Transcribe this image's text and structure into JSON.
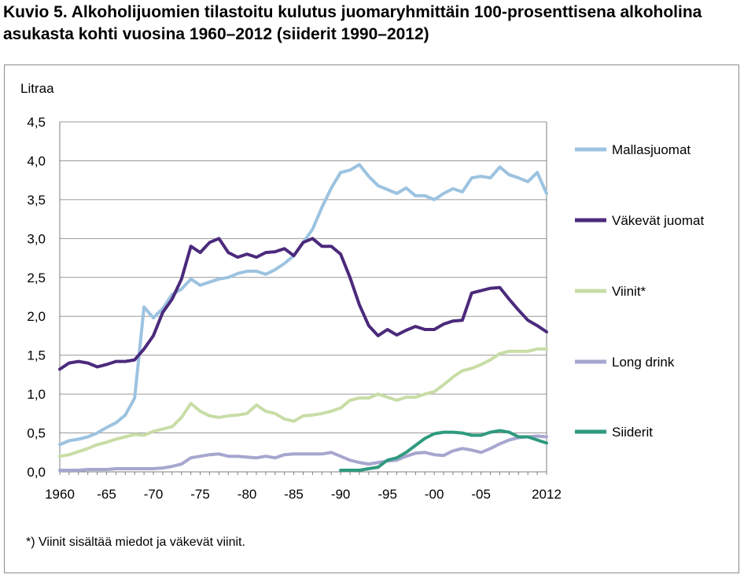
{
  "title_line1": "Kuvio 5. Alkoholijuomien tilastoitu kulutus juomaryhmittäin 100-prosenttisena alkoholina",
  "title_line2": "asukasta kohti vuosina 1960–2012 (siiderit 1990–2012)",
  "footnote": "*) Viinit sisältää miedot ja väkevät viinit.",
  "chart_data": {
    "type": "line",
    "ylabel": "Litraa",
    "ylim": [
      0,
      4.5
    ],
    "yticks": [
      "0,0",
      "0,5",
      "1,0",
      "1,5",
      "2,0",
      "2,5",
      "3,0",
      "3,5",
      "4,0",
      "4,5"
    ],
    "xlim": [
      1960,
      2012
    ],
    "xticks": [
      {
        "value": 1960,
        "label": "1960"
      },
      {
        "value": 1965,
        "label": "-65"
      },
      {
        "value": 1970,
        "label": "-70"
      },
      {
        "value": 1975,
        "label": "-75"
      },
      {
        "value": 1980,
        "label": "-80"
      },
      {
        "value": 1985,
        "label": "-85"
      },
      {
        "value": 1990,
        "label": "-90"
      },
      {
        "value": 1995,
        "label": "-95"
      },
      {
        "value": 2000,
        "label": "-00"
      },
      {
        "value": 2005,
        "label": "-05"
      },
      {
        "value": 2012,
        "label": "2012"
      }
    ],
    "grid": "horizontal",
    "legend": "right",
    "series": [
      {
        "name": "Mallasjuomat",
        "color": "#9cc3e0",
        "x": [
          1960,
          1961,
          1962,
          1963,
          1964,
          1965,
          1966,
          1967,
          1968,
          1969,
          1970,
          1971,
          1972,
          1973,
          1974,
          1975,
          1976,
          1977,
          1978,
          1979,
          1980,
          1981,
          1982,
          1983,
          1984,
          1985,
          1986,
          1987,
          1988,
          1989,
          1990,
          1991,
          1992,
          1993,
          1994,
          1995,
          1996,
          1997,
          1998,
          1999,
          2000,
          2001,
          2002,
          2003,
          2004,
          2005,
          2006,
          2007,
          2008,
          2009,
          2010,
          2011,
          2012
        ],
        "values": [
          0.35,
          0.4,
          0.42,
          0.45,
          0.5,
          0.57,
          0.63,
          0.73,
          0.95,
          2.12,
          1.98,
          2.1,
          2.28,
          2.35,
          2.48,
          2.4,
          2.44,
          2.48,
          2.5,
          2.55,
          2.58,
          2.58,
          2.54,
          2.6,
          2.68,
          2.78,
          2.95,
          3.12,
          3.4,
          3.65,
          3.85,
          3.88,
          3.95,
          3.8,
          3.68,
          3.63,
          3.58,
          3.65,
          3.55,
          3.55,
          3.5,
          3.58,
          3.64,
          3.6,
          3.78,
          3.8,
          3.78,
          3.92,
          3.82,
          3.78,
          3.73,
          3.85,
          3.58
        ]
      },
      {
        "name": "Väkevät juomat",
        "color": "#4b2a7c",
        "x": [
          1960,
          1961,
          1962,
          1963,
          1964,
          1965,
          1966,
          1967,
          1968,
          1969,
          1970,
          1971,
          1972,
          1973,
          1974,
          1975,
          1976,
          1977,
          1978,
          1979,
          1980,
          1981,
          1982,
          1983,
          1984,
          1985,
          1986,
          1987,
          1988,
          1989,
          1990,
          1991,
          1992,
          1993,
          1994,
          1995,
          1996,
          1997,
          1998,
          1999,
          2000,
          2001,
          2002,
          2003,
          2004,
          2005,
          2006,
          2007,
          2008,
          2009,
          2010,
          2011,
          2012
        ],
        "values": [
          1.32,
          1.4,
          1.42,
          1.4,
          1.35,
          1.38,
          1.42,
          1.42,
          1.44,
          1.58,
          1.75,
          2.05,
          2.22,
          2.48,
          2.9,
          2.82,
          2.95,
          3.0,
          2.82,
          2.76,
          2.8,
          2.76,
          2.82,
          2.83,
          2.87,
          2.78,
          2.95,
          3.0,
          2.9,
          2.9,
          2.8,
          2.5,
          2.15,
          1.88,
          1.75,
          1.83,
          1.76,
          1.82,
          1.87,
          1.83,
          1.83,
          1.9,
          1.94,
          1.95,
          2.3,
          2.33,
          2.36,
          2.37,
          2.22,
          2.08,
          1.95,
          1.88,
          1.8
        ]
      },
      {
        "name": "Viinit*",
        "color": "#c8dda6",
        "x": [
          1960,
          1961,
          1962,
          1963,
          1964,
          1965,
          1966,
          1967,
          1968,
          1969,
          1970,
          1971,
          1972,
          1973,
          1974,
          1975,
          1976,
          1977,
          1978,
          1979,
          1980,
          1981,
          1982,
          1983,
          1984,
          1985,
          1986,
          1987,
          1988,
          1989,
          1990,
          1991,
          1992,
          1993,
          1994,
          1995,
          1996,
          1997,
          1998,
          1999,
          2000,
          2001,
          2002,
          2003,
          2004,
          2005,
          2006,
          2007,
          2008,
          2009,
          2010,
          2011,
          2012
        ],
        "values": [
          0.2,
          0.22,
          0.26,
          0.3,
          0.35,
          0.38,
          0.42,
          0.45,
          0.48,
          0.47,
          0.52,
          0.55,
          0.58,
          0.7,
          0.88,
          0.78,
          0.72,
          0.7,
          0.72,
          0.73,
          0.75,
          0.86,
          0.78,
          0.75,
          0.68,
          0.65,
          0.72,
          0.73,
          0.75,
          0.78,
          0.82,
          0.92,
          0.95,
          0.95,
          1.0,
          0.96,
          0.92,
          0.96,
          0.96,
          1.0,
          1.03,
          1.12,
          1.22,
          1.3,
          1.33,
          1.38,
          1.44,
          1.52,
          1.55,
          1.55,
          1.55,
          1.58,
          1.58
        ]
      },
      {
        "name": "Long drink",
        "color": "#a6a6cf",
        "x": [
          1960,
          1961,
          1962,
          1963,
          1964,
          1965,
          1966,
          1967,
          1968,
          1969,
          1970,
          1971,
          1972,
          1973,
          1974,
          1975,
          1976,
          1977,
          1978,
          1979,
          1980,
          1981,
          1982,
          1983,
          1984,
          1985,
          1986,
          1987,
          1988,
          1989,
          1990,
          1991,
          1992,
          1993,
          1994,
          1995,
          1996,
          1997,
          1998,
          1999,
          2000,
          2001,
          2002,
          2003,
          2004,
          2005,
          2006,
          2007,
          2008,
          2009,
          2010,
          2011,
          2012
        ],
        "values": [
          0.02,
          0.02,
          0.02,
          0.03,
          0.03,
          0.03,
          0.04,
          0.04,
          0.04,
          0.04,
          0.04,
          0.05,
          0.07,
          0.1,
          0.18,
          0.2,
          0.22,
          0.23,
          0.2,
          0.2,
          0.19,
          0.18,
          0.2,
          0.18,
          0.22,
          0.23,
          0.23,
          0.23,
          0.23,
          0.25,
          0.2,
          0.15,
          0.12,
          0.1,
          0.12,
          0.14,
          0.15,
          0.2,
          0.24,
          0.25,
          0.22,
          0.21,
          0.27,
          0.3,
          0.28,
          0.25,
          0.3,
          0.36,
          0.41,
          0.44,
          0.45,
          0.46,
          0.45
        ]
      },
      {
        "name": "Siiderit",
        "color": "#2f9a7e",
        "x": [
          1990,
          1991,
          1992,
          1993,
          1994,
          1995,
          1996,
          1997,
          1998,
          1999,
          2000,
          2001,
          2002,
          2003,
          2004,
          2005,
          2006,
          2007,
          2008,
          2009,
          2010,
          2011,
          2012
        ],
        "values": [
          0.02,
          0.02,
          0.02,
          0.04,
          0.06,
          0.15,
          0.18,
          0.25,
          0.34,
          0.43,
          0.49,
          0.51,
          0.51,
          0.5,
          0.47,
          0.47,
          0.51,
          0.53,
          0.51,
          0.45,
          0.45,
          0.41,
          0.37
        ]
      }
    ]
  }
}
